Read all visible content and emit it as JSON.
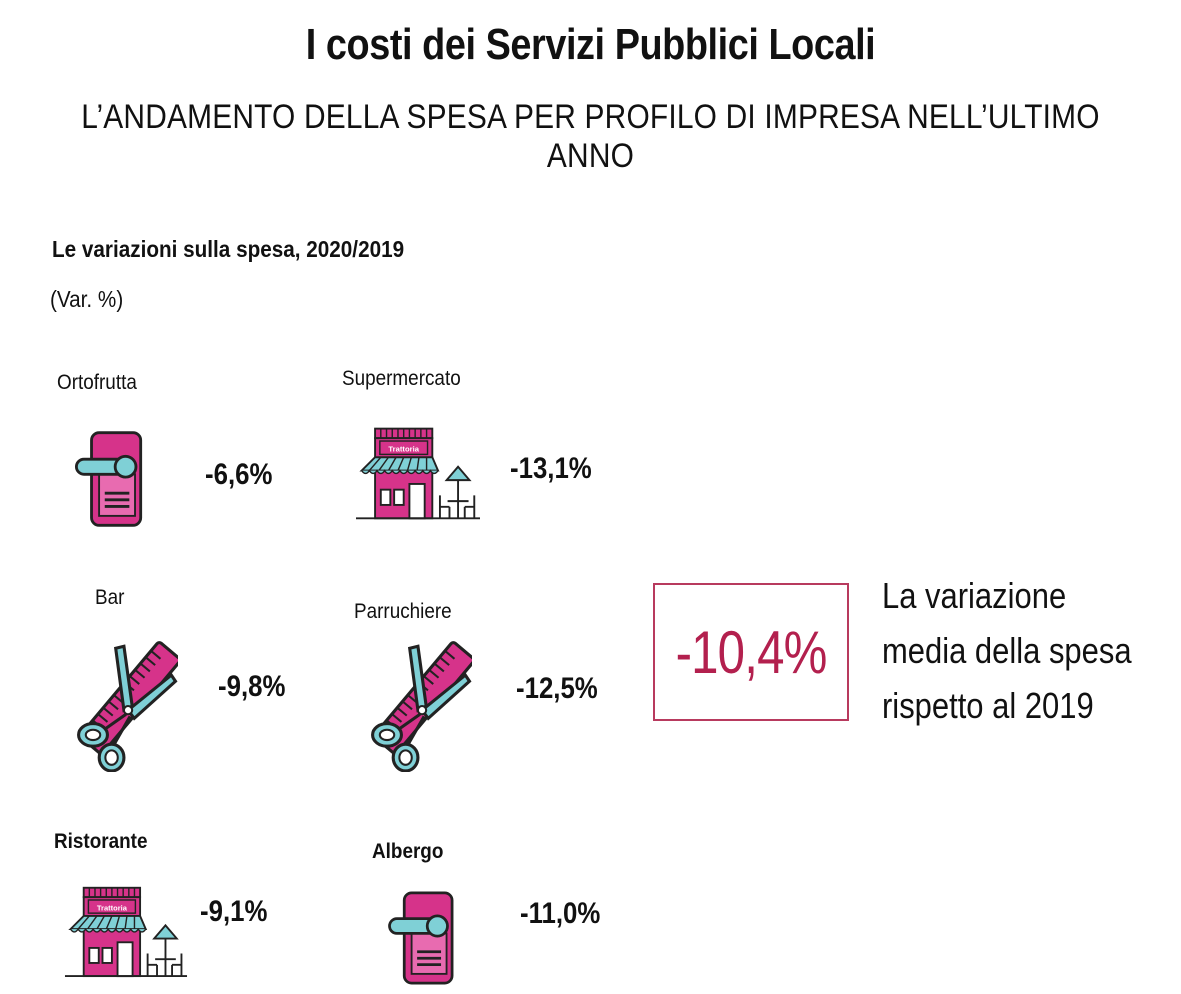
{
  "header": {
    "title": "I costi dei Servizi Pubblici Locali",
    "subtitle": "L’ANDAMENTO DELLA SPESA PER PROFILO DI IMPRESA NELL’ULTIMO ANNO"
  },
  "section": {
    "title": "Le variazioni sulla spesa, 2020/2019",
    "unit": "(Var. %)"
  },
  "categories": [
    {
      "label": "Ortofrutta",
      "value": "-6,6%",
      "icon": "door-hanger-icon"
    },
    {
      "label": "Supermercato",
      "value": "-13,1%",
      "icon": "trattoria-shop-icon"
    },
    {
      "label": "Bar",
      "value": "-9,8%",
      "icon": "scissors-comb-icon"
    },
    {
      "label": "Parruchiere",
      "value": "-12,5%",
      "icon": "scissors-comb-icon"
    },
    {
      "label": "Ristorante",
      "value": "-9,1%",
      "icon": "trattoria-shop-icon"
    },
    {
      "label": "Albergo",
      "value": "-11,0%",
      "icon": "door-hanger-icon"
    }
  ],
  "icon_texts": {
    "shop_sign": "Trattoria"
  },
  "average": {
    "value": "-10,4%",
    "text_lines": [
      "La variazione",
      "media della spesa",
      "rispetto al 2019"
    ]
  },
  "colors": {
    "magenta": "#d6338a",
    "teal": "#7fd0d6",
    "accent_red": "#b3204e",
    "box_border": "#b83a5e"
  }
}
